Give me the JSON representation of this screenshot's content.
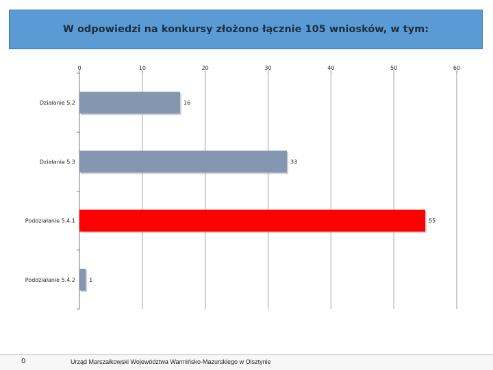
{
  "header": {
    "title": "W odpowiedzi na konkursy złożono łącznie 105 wniosków, w tym:"
  },
  "footer": {
    "page_number": "0",
    "text": "Urząd Marszałkowski Województwa Warmińsko-Mazurskiego w Olsztynie"
  },
  "chart_data": {
    "type": "bar",
    "orientation": "horizontal",
    "title": "",
    "xlabel": "",
    "ylabel": "",
    "xlim": [
      0,
      60
    ],
    "ticks": [
      0,
      10,
      20,
      30,
      40,
      50,
      60
    ],
    "axis_position": "top",
    "grid": true,
    "categories": [
      "Działanie 5.2",
      "Działanie 5.3",
      "Poddziałanie 5.4.1",
      "Poddziałanie 5.4.2"
    ],
    "values": [
      16,
      33,
      55,
      1
    ],
    "colors": [
      "#8497b0",
      "#8497b0",
      "#ff0000",
      "#8497b0"
    ],
    "data_labels": [
      "16",
      "33",
      "55",
      "1"
    ]
  }
}
